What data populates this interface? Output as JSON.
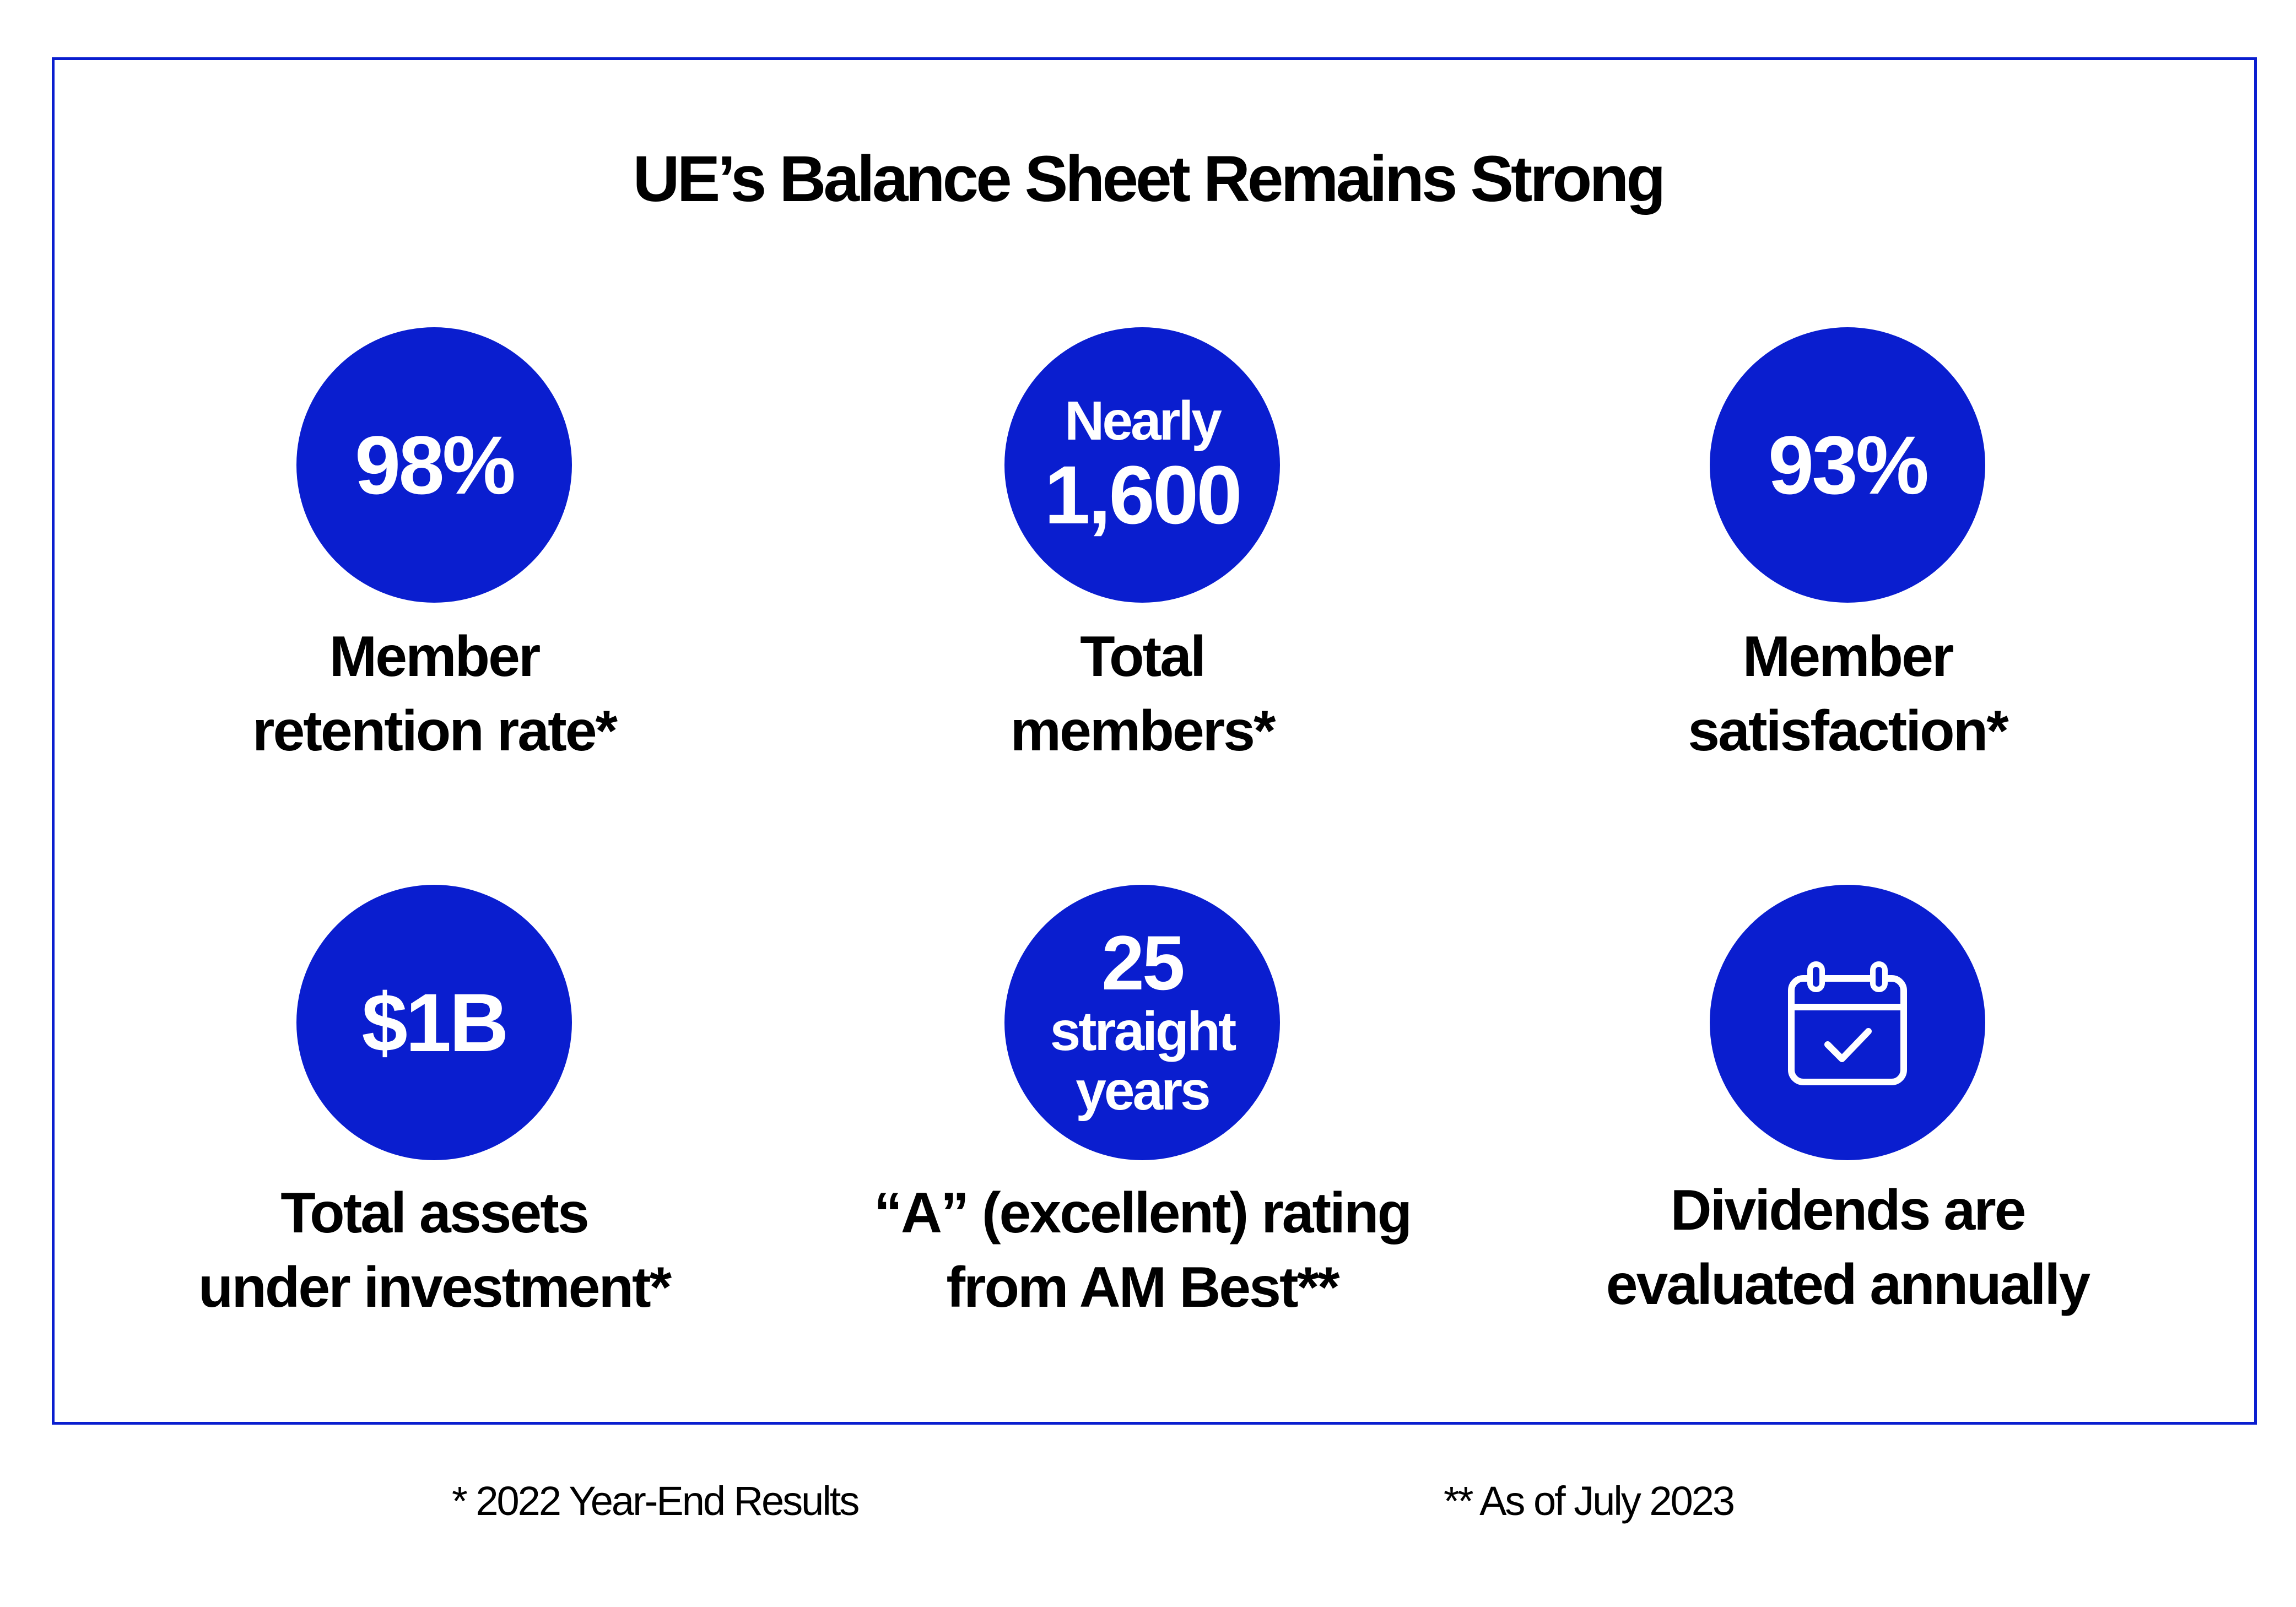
{
  "title": "UE’s Balance Sheet Remains Strong",
  "colors": {
    "accent": "#0a1ecf",
    "text": "#000000",
    "background": "#ffffff"
  },
  "stats": [
    {
      "circle_lines": [
        "98%"
      ],
      "caption_lines": [
        "Member",
        "retention rate*"
      ]
    },
    {
      "circle_lines": [
        "Nearly",
        "1,600"
      ],
      "caption_lines": [
        "Total",
        "members*"
      ]
    },
    {
      "circle_lines": [
        "93%"
      ],
      "caption_lines": [
        "Member",
        "satisfaction*"
      ]
    },
    {
      "circle_lines": [
        "$1B"
      ],
      "caption_lines": [
        "Total assets",
        "under investment*"
      ]
    },
    {
      "circle_lines": [
        "25",
        "straight",
        "years"
      ],
      "caption_lines": [
        "“A” (excellent) rating",
        "from AM Best**"
      ]
    },
    {
      "icon": "calendar-check-icon",
      "caption_lines": [
        "Dividends are",
        "evaluated annually"
      ]
    }
  ],
  "footnotes": [
    "* 2022 Year-End Results",
    "** As of July 2023"
  ]
}
